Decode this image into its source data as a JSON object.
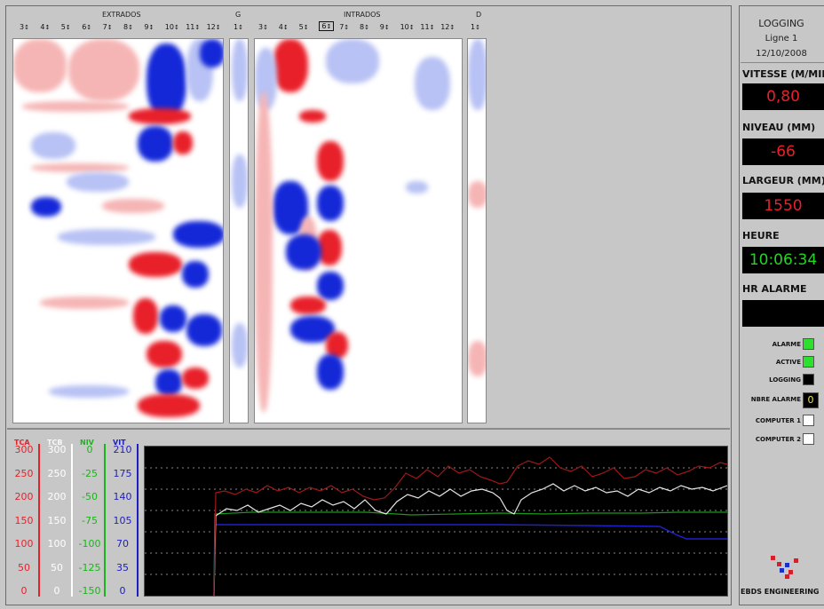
{
  "header": {
    "extrados_label": "EXTRADOS",
    "g_label": "G",
    "intrados_label": "INTRADOS",
    "d_label": "D",
    "extrados_ticks": [
      "3",
      "4",
      "5",
      "6",
      "7",
      "8",
      "9",
      "10",
      "11",
      "12"
    ],
    "g_ticks": [
      "1"
    ],
    "intrados_ticks": [
      "3",
      "4",
      "5",
      "6",
      "7",
      "8",
      "9",
      "10",
      "11",
      "12"
    ],
    "d_ticks": [
      "1"
    ],
    "selected_intrados_tick": "6"
  },
  "scales": [
    {
      "name": "TCA",
      "color": "#e8202a",
      "values": [
        "300",
        "250",
        "200",
        "150",
        "100",
        "50",
        "0"
      ]
    },
    {
      "name": "TCB",
      "color": "#ffffff",
      "values": [
        "300",
        "250",
        "200",
        "150",
        "100",
        "50",
        "0"
      ]
    },
    {
      "name": "NIV",
      "color": "#1db31d",
      "values": [
        "0",
        "-25",
        "-50",
        "-75",
        "-100",
        "-125",
        "-150"
      ]
    },
    {
      "name": "VIT",
      "color": "#2020c0",
      "values": [
        "210",
        "175",
        "140",
        "105",
        "70",
        "35",
        "0"
      ]
    }
  ],
  "panel": {
    "title": "LOGGING",
    "line": "Ligne 1",
    "date": "12/10/2008",
    "vitesse_label": "VITESSE (M/MIN)",
    "vitesse_value": "0,80",
    "niveau_label": "NIVEAU (MM)",
    "niveau_value": "-66",
    "largeur_label": "LARGEUR (MM)",
    "largeur_value": "1550",
    "heure_label": "HEURE",
    "heure_value": "10:06:34",
    "hr_alarme_label": "HR ALARME",
    "hr_alarme_value": "",
    "alarme_label": "ALARME",
    "active_label": "ACTIVE",
    "logging_label": "LOGGING",
    "nbre_alarme_label": "NBRE ALARME",
    "nbre_alarme_value": "0",
    "computer1_label": "COMPUTER 1",
    "computer2_label": "COMPUTER 2",
    "brand": "EBDS ENGINEERING"
  },
  "indicators": {
    "alarme": "#2ee02e",
    "active": "#2ee02e",
    "logging": "#000000",
    "computer1": "#ffffff",
    "computer2": "#ffffff"
  },
  "colors": {
    "value_red": "#e8202a",
    "value_green": "#26d426",
    "trend_red": "#a01818",
    "trend_white": "#e6e6e6",
    "trend_green": "#1a9a1a",
    "trend_blue": "#2020c8"
  }
}
